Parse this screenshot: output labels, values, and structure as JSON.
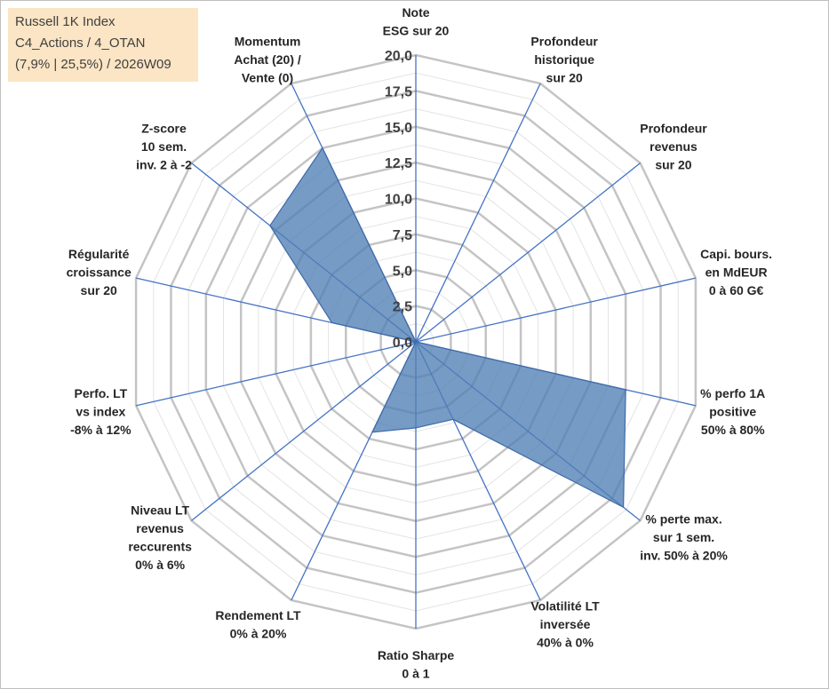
{
  "legend": {
    "line1": "Russell 1K Index",
    "line2": "C4_Actions / 4_OTAN",
    "line3": "(7,9% | 25,5%) / 2026W09"
  },
  "chart_data": {
    "type": "radar",
    "title": "",
    "rmin": 0,
    "rmax": 20,
    "ticks": [
      "0,0",
      "2,5",
      "5,0",
      "7,5",
      "10,0",
      "12,5",
      "15,0",
      "17,5",
      "20,0"
    ],
    "tick_values": [
      0,
      2.5,
      5,
      7.5,
      10,
      12.5,
      15,
      17.5,
      20
    ],
    "axes": [
      {
        "label": [
          "Note",
          "ESG sur 20"
        ],
        "value": 0
      },
      {
        "label": [
          "Profondeur",
          "historique",
          "sur 20"
        ],
        "value": 0
      },
      {
        "label": [
          "Profondeur",
          "revenus",
          "sur 20"
        ],
        "value": 0
      },
      {
        "label": [
          "Capi. bours.",
          "en MdEUR",
          "0 à 60 G€"
        ],
        "value": 0
      },
      {
        "label": [
          "% perfo 1A",
          "positive",
          "50% à 80%"
        ],
        "value": 15
      },
      {
        "label": [
          "% perte max.",
          "sur 1 sem.",
          "inv. 50% à 20%"
        ],
        "value": 18.5
      },
      {
        "label": [
          "Volatilité LT",
          "inversée",
          "40% à 0%"
        ],
        "value": 6
      },
      {
        "label": [
          "Ratio Sharpe",
          "0 à 1"
        ],
        "value": 6
      },
      {
        "label": [
          "Rendement LT",
          "0% à 20%"
        ],
        "value": 7
      },
      {
        "label": [
          "Niveau LT",
          "revenus",
          "reccurents",
          "0% à 6%"
        ],
        "value": 0
      },
      {
        "label": [
          "Perfo. LT",
          "vs index",
          "-8% à 12%"
        ],
        "value": 0
      },
      {
        "label": [
          "Régularité",
          "croissance",
          "sur 20"
        ],
        "value": 6
      },
      {
        "label": [
          "Z-score",
          "10 sem.",
          "inv. 2 à -2"
        ],
        "value": 13
      },
      {
        "label": [
          "Momentum",
          "Achat (20) /",
          "Vente (0)"
        ],
        "value": 15
      }
    ],
    "series": [
      {
        "name": "Russell 1K Index",
        "color": "#4f7fb5"
      }
    ]
  }
}
